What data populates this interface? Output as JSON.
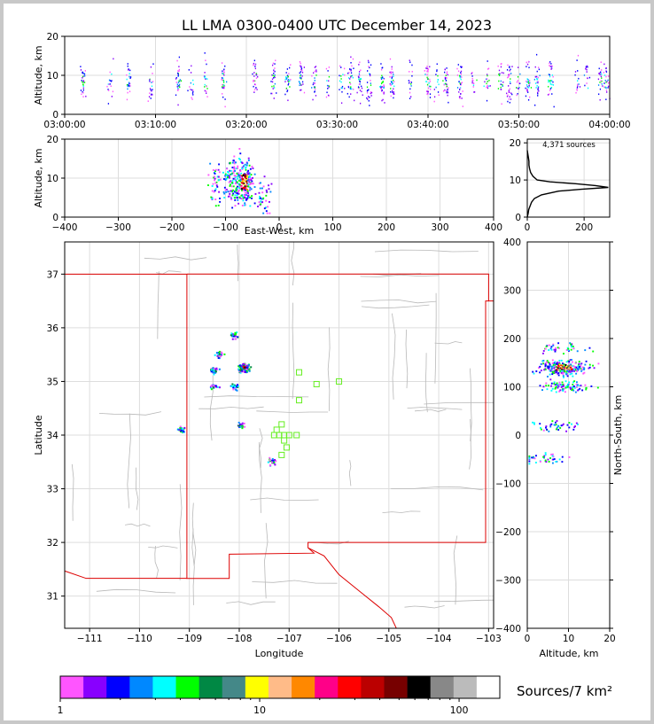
{
  "title": "LL LMA 0300-0400 UTC December 14, 2023",
  "time_panel": {
    "ylabel": "Altitude, km",
    "yticks": [
      "0",
      "10",
      "20"
    ],
    "xticks": [
      "03:00:00",
      "03:10:00",
      "03:20:00",
      "03:30:00",
      "03:40:00",
      "03:50:00",
      "04:00:00"
    ]
  },
  "ew_panel": {
    "ylabel": "Altitude, km",
    "xlabel": "East-West, km",
    "yticks": [
      "0",
      "10",
      "20"
    ],
    "xticks": [
      "−400",
      "−300",
      "−200",
      "−100",
      "0",
      "100",
      "200",
      "300",
      "400"
    ]
  },
  "hist_panel": {
    "annotation": "4,371 sources",
    "yticks": [
      "0",
      "10",
      "20"
    ],
    "xticks": [
      "0",
      "200"
    ]
  },
  "map_panel": {
    "xlabel": "Longitude",
    "ylabel": "Latitude",
    "xticks": [
      "−111",
      "−110",
      "−109",
      "−108",
      "−107",
      "−106",
      "−105",
      "−104",
      "−103"
    ],
    "yticks": [
      "31",
      "32",
      "33",
      "34",
      "35",
      "36",
      "37"
    ]
  },
  "ns_panel": {
    "xlabel": "Altitude, km",
    "ylabel": "North-South, km",
    "xticks": [
      "0",
      "10",
      "20"
    ],
    "yticks": [
      "−400",
      "−300",
      "−200",
      "−100",
      "0",
      "100",
      "200",
      "300",
      "400"
    ]
  },
  "colorbar": {
    "label": "Sources/7 km²",
    "ticks": [
      "1",
      "10",
      "100"
    ],
    "colors": [
      "#ff55ff",
      "#8800ff",
      "#0000ff",
      "#0088ff",
      "#00ffff",
      "#00ff00",
      "#008844",
      "#448888",
      "#ffff00",
      "#ffbb88",
      "#ff8800",
      "#ff0088",
      "#ff0000",
      "#bb0000",
      "#770000",
      "#000000",
      "#888888",
      "#bbbbbb",
      "#ffffff"
    ]
  },
  "chart_data": [
    {
      "type": "scatter",
      "title": "LL LMA 0300-0400 UTC December 14, 2023",
      "xlabel": "",
      "ylabel": "Altitude, km",
      "xlim": [
        "03:00:00",
        "04:00:00"
      ],
      "ylim": [
        0,
        20
      ],
      "grid": true,
      "clusters_minutes": [
        2,
        5,
        7,
        9.5,
        12.5,
        14,
        15.5,
        17.5,
        21,
        23,
        24.5,
        26,
        27.5,
        29,
        30.5,
        31.5,
        32.5,
        33.5,
        35,
        36,
        38,
        40,
        41,
        42,
        43.5,
        45,
        46.5,
        48,
        49,
        50,
        51,
        52,
        53.5,
        56.5,
        57.5,
        59,
        59.7
      ]
    },
    {
      "type": "scatter",
      "xlabel": "East-West, km",
      "ylabel": "Altitude, km",
      "xlim": [
        -400,
        400
      ],
      "ylim": [
        0,
        20
      ],
      "clusters": [
        {
          "x": -120,
          "alt": 9,
          "density": "low"
        },
        {
          "x": -90,
          "alt": 9,
          "density": "medium"
        },
        {
          "x": -65,
          "alt": 9,
          "density": "high"
        },
        {
          "x": -30,
          "alt": 5,
          "density": "low"
        }
      ]
    },
    {
      "type": "line",
      "annotation": "4,371 sources",
      "xlabel": "",
      "ylabel": "",
      "xlim": [
        0,
        290
      ],
      "ylim": [
        0,
        21
      ],
      "alt": [
        0,
        1,
        2,
        3,
        4,
        5,
        6,
        7,
        7.5,
        8,
        8.5,
        9,
        9.5,
        10,
        11,
        12,
        13,
        14,
        15,
        16,
        17,
        18
      ],
      "count": [
        0,
        3,
        5,
        10,
        15,
        25,
        50,
        110,
        190,
        285,
        240,
        170,
        80,
        35,
        20,
        12,
        8,
        6,
        6,
        4,
        2,
        0
      ]
    },
    {
      "type": "heatmap",
      "xlabel": "Longitude",
      "ylabel": "Latitude",
      "xlim": [
        -111.5,
        -102.9
      ],
      "ylim": [
        30.4,
        37.6
      ],
      "source_clusters": [
        {
          "lon": -108.4,
          "lat": 35.5
        },
        {
          "lon": -108.1,
          "lat": 35.85
        },
        {
          "lon": -107.9,
          "lat": 35.25
        },
        {
          "lon": -108.5,
          "lat": 35.2
        },
        {
          "lon": -108.5,
          "lat": 34.9
        },
        {
          "lon": -108.1,
          "lat": 34.9
        },
        {
          "lon": -107.95,
          "lat": 34.17
        },
        {
          "lon": -109.15,
          "lat": 34.1
        },
        {
          "lon": -107.35,
          "lat": 33.5
        }
      ],
      "stations": [
        {
          "lon": -106.8,
          "lat": 35.17
        },
        {
          "lon": -106.45,
          "lat": 34.95
        },
        {
          "lon": -106.0,
          "lat": 35.0
        },
        {
          "lon": -106.8,
          "lat": 34.65
        },
        {
          "lon": -107.15,
          "lat": 34.2
        },
        {
          "lon": -107.25,
          "lat": 34.1
        },
        {
          "lon": -107.3,
          "lat": 34.0
        },
        {
          "lon": -107.2,
          "lat": 34.0
        },
        {
          "lon": -107.1,
          "lat": 34.0
        },
        {
          "lon": -107.0,
          "lat": 34.0
        },
        {
          "lon": -106.85,
          "lat": 34.0
        },
        {
          "lon": -107.1,
          "lat": 33.9
        },
        {
          "lon": -107.05,
          "lat": 33.77
        },
        {
          "lon": -107.15,
          "lat": 33.63
        }
      ]
    },
    {
      "type": "scatter",
      "xlabel": "Altitude, km",
      "ylabel": "North-South, km",
      "xlim": [
        0,
        20
      ],
      "ylim": [
        -400,
        400
      ],
      "clusters": [
        {
          "y": 140,
          "alt": 9,
          "density": "high"
        },
        {
          "y": 100,
          "alt": 9,
          "density": "medium"
        },
        {
          "y": 180,
          "alt": 9,
          "density": "low"
        },
        {
          "y": 20,
          "alt": 7,
          "density": "low"
        },
        {
          "y": -50,
          "alt": 5,
          "density": "low"
        }
      ]
    }
  ]
}
